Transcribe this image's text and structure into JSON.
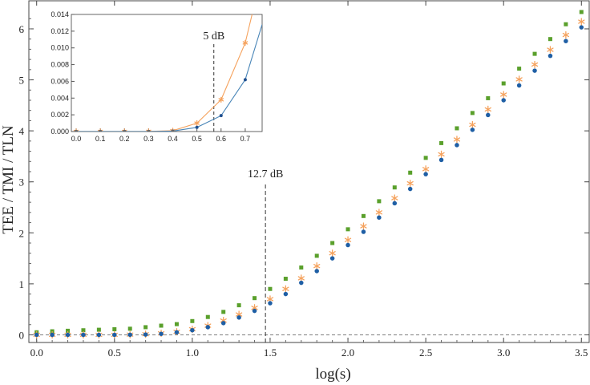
{
  "chart_data": [
    {
      "type": "scatter",
      "xlabel": "log(s)",
      "ylabel": "TEE / TMI / TLN",
      "xlim": [
        -0.05,
        3.55
      ],
      "ylim": [
        -0.15,
        6.55
      ],
      "xticks": [
        "0.0",
        "0.5",
        "1.0",
        "1.5",
        "2.0",
        "2.5",
        "3.0",
        "3.5"
      ],
      "yticks": [
        "0",
        "1",
        "2",
        "3",
        "4",
        "5",
        "6"
      ],
      "x": [
        0.0,
        0.1,
        0.2,
        0.3,
        0.4,
        0.5,
        0.6,
        0.7,
        0.8,
        0.9,
        1.0,
        1.1,
        1.2,
        1.3,
        1.4,
        1.5,
        1.6,
        1.7,
        1.8,
        1.9,
        2.0,
        2.1,
        2.2,
        2.3,
        2.4,
        2.5,
        2.6,
        2.7,
        2.8,
        2.9,
        3.0,
        3.1,
        3.2,
        3.3,
        3.4,
        3.5
      ],
      "series": [
        {
          "color": "#5aa02c",
          "marker": "square",
          "values": [
            0.05,
            0.07,
            0.08,
            0.09,
            0.1,
            0.11,
            0.12,
            0.15,
            0.18,
            0.21,
            0.27,
            0.35,
            0.45,
            0.58,
            0.72,
            0.9,
            1.1,
            1.32,
            1.55,
            1.8,
            2.07,
            2.33,
            2.62,
            2.89,
            3.18,
            3.47,
            3.76,
            4.05,
            4.35,
            4.64,
            4.93,
            5.22,
            5.51,
            5.8,
            6.09,
            6.33
          ]
        },
        {
          "color": "#f5a25d",
          "marker": "asterisk",
          "values": [
            0.0,
            0.0,
            0.0,
            0.0,
            0.0,
            0.001,
            0.004,
            0.012,
            0.03,
            0.06,
            0.11,
            0.18,
            0.28,
            0.4,
            0.53,
            0.7,
            0.9,
            1.11,
            1.35,
            1.6,
            1.86,
            2.13,
            2.4,
            2.68,
            2.97,
            3.25,
            3.54,
            3.83,
            4.12,
            4.42,
            4.71,
            5.01,
            5.3,
            5.59,
            5.88,
            6.14
          ]
        },
        {
          "color": "#1f5fa5",
          "marker": "circle",
          "values": [
            0.0,
            0.0,
            0.0,
            0.0,
            0.0,
            0.0,
            0.002,
            0.006,
            0.02,
            0.05,
            0.09,
            0.15,
            0.23,
            0.34,
            0.47,
            0.62,
            0.8,
            1.02,
            1.25,
            1.5,
            1.76,
            2.02,
            2.3,
            2.58,
            2.86,
            3.15,
            3.43,
            3.72,
            4.02,
            4.31,
            4.6,
            4.89,
            5.18,
            5.47,
            5.76,
            6.03
          ]
        }
      ],
      "hline": 0,
      "vline": {
        "x": 1.47,
        "label": "12.7 dB"
      }
    },
    {
      "type": "line",
      "inset": true,
      "xlim": [
        -0.02,
        0.77
      ],
      "ylim": [
        0,
        0.014
      ],
      "xticks": [
        "0.0",
        "0.1",
        "0.2",
        "0.3",
        "0.4",
        "0.5",
        "0.6",
        "0.7"
      ],
      "yticks": [
        "0.000",
        "0.002",
        "0.004",
        "0.006",
        "0.008",
        "0.010",
        "0.012",
        "0.014"
      ],
      "x": [
        0.0,
        0.1,
        0.2,
        0.3,
        0.4,
        0.5,
        0.6,
        0.7,
        0.77
      ],
      "series": [
        {
          "color": "#f5a25d",
          "marker": "asterisk",
          "values": [
            1e-05,
            1e-05,
            1e-05,
            2e-05,
            0.0001,
            0.001,
            0.0038,
            0.0106,
            0.019
          ]
        },
        {
          "color": "#4a86b8",
          "marker": "circle",
          "values": [
            1e-05,
            1e-05,
            1e-05,
            1e-05,
            5e-05,
            0.0005,
            0.0019,
            0.0062,
            0.0128
          ]
        }
      ],
      "vline": {
        "x": 0.57,
        "label": "5 dB"
      }
    }
  ]
}
